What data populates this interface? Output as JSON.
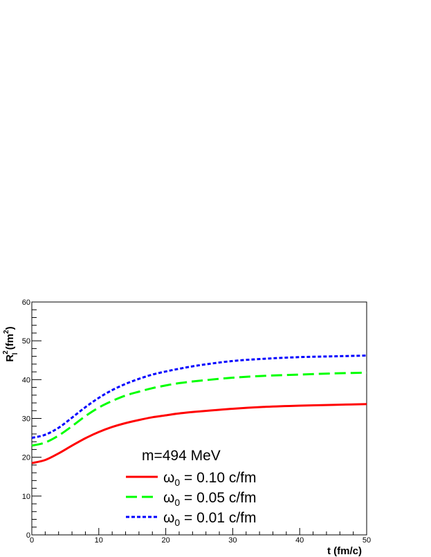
{
  "chart_data": {
    "type": "line",
    "xlabel": "t (fm/c)",
    "ylabel": {
      "base": "R",
      "sup": "2",
      "sub": "l",
      "unit_pre": " (fm",
      "unit_sup": "2",
      "unit_post": ")"
    },
    "xlim": [
      0,
      50
    ],
    "ylim": [
      0,
      60
    ],
    "x_ticks": [
      0,
      10,
      20,
      30,
      40,
      50
    ],
    "y_ticks": [
      0,
      10,
      20,
      30,
      40,
      50,
      60
    ],
    "grid": false,
    "legend_header": "m=494 MeV",
    "legend_placement": "bottom-center",
    "x": [
      0,
      2,
      4,
      6,
      8,
      10,
      12,
      14,
      16,
      18,
      20,
      22,
      25,
      30,
      35,
      40,
      45,
      50
    ],
    "series": [
      {
        "name": {
          "base": "ω",
          "sub": "0",
          "rest": " = 0.10 c/fm"
        },
        "color": "#ff0000",
        "dash": "solid",
        "values": [
          18.5,
          19.3,
          21.0,
          23.0,
          24.9,
          26.5,
          27.8,
          28.8,
          29.6,
          30.3,
          30.8,
          31.3,
          31.8,
          32.5,
          33.0,
          33.3,
          33.5,
          33.7
        ]
      },
      {
        "name": {
          "base": "ω",
          "sub": "0",
          "rest": " = 0.05 c/fm"
        },
        "color": "#00ff00",
        "dash": "long-dash",
        "values": [
          23.0,
          23.8,
          25.6,
          28.0,
          30.6,
          32.8,
          34.5,
          35.9,
          36.9,
          37.8,
          38.5,
          39.1,
          39.7,
          40.5,
          41.0,
          41.3,
          41.6,
          41.8
        ]
      },
      {
        "name": {
          "base": "ω",
          "sub": "0",
          "rest": " = 0.01 c/fm"
        },
        "color": "#0000ff",
        "dash": "short-dash",
        "values": [
          25.0,
          25.8,
          27.6,
          30.2,
          32.9,
          35.3,
          37.3,
          38.9,
          40.2,
          41.3,
          42.1,
          42.8,
          43.7,
          44.8,
          45.4,
          45.8,
          46.0,
          46.2
        ]
      }
    ]
  }
}
